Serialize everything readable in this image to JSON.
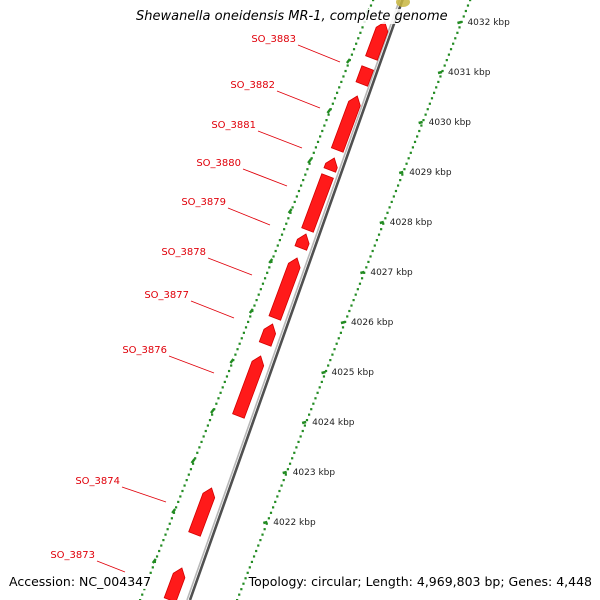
{
  "title": "Shewanella oneidensis MR-1, complete genome",
  "footer": {
    "accession": "Accession: NC_004347",
    "topology": "Topology: circular; Length: 4,969,803 bp; Genes: 4,448"
  },
  "colors": {
    "gene": "#ff1a1a",
    "label": "#e0000a",
    "dots": "#228b22",
    "backbone": "#8a8a8a"
  },
  "genes": [
    {
      "id": "SO_3883",
      "label": "SO_3883"
    },
    {
      "id": "SO_3882",
      "label": "SO_3882"
    },
    {
      "id": "SO_3881",
      "label": "SO_3881"
    },
    {
      "id": "SO_3880",
      "label": "SO_3880"
    },
    {
      "id": "SO_3879",
      "label": "SO_3879"
    },
    {
      "id": "SO_3878",
      "label": "SO_3878"
    },
    {
      "id": "SO_3877",
      "label": "SO_3877"
    },
    {
      "id": "SO_3876",
      "label": "SO_3876"
    },
    {
      "id": "SO_3874",
      "label": "SO_3874"
    },
    {
      "id": "SO_3873",
      "label": "SO_3873"
    }
  ],
  "scale_ticks": [
    "4032 kbp",
    "4031 kbp",
    "4030 kbp",
    "4029 kbp",
    "4028 kbp",
    "4027 kbp",
    "4026 kbp",
    "4025 kbp",
    "4024 kbp",
    "4023 kbp",
    "4022 kbp"
  ]
}
